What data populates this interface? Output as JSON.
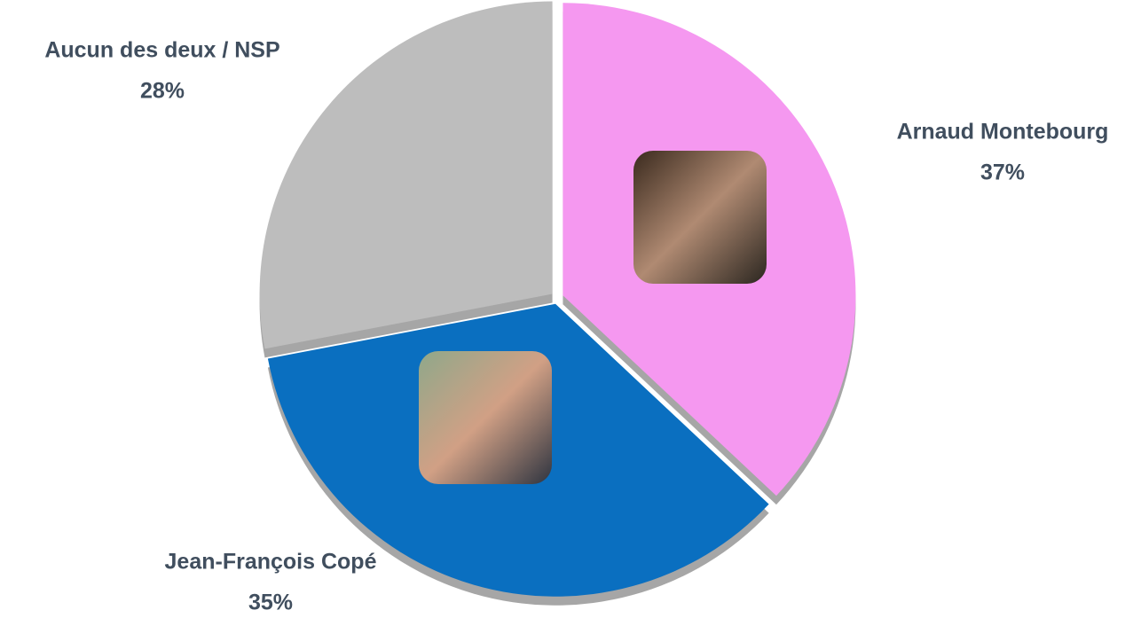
{
  "chart_data": {
    "type": "pie",
    "categories": [
      "Arnaud Montebourg",
      "Jean-François Copé",
      "Aucun des deux / NSP"
    ],
    "values": [
      37,
      35,
      28
    ],
    "value_labels": [
      "37%",
      "35%",
      "28%"
    ],
    "colors": [
      "#f598f0",
      "#0a6fc0",
      "#bdbdbd"
    ]
  }
}
